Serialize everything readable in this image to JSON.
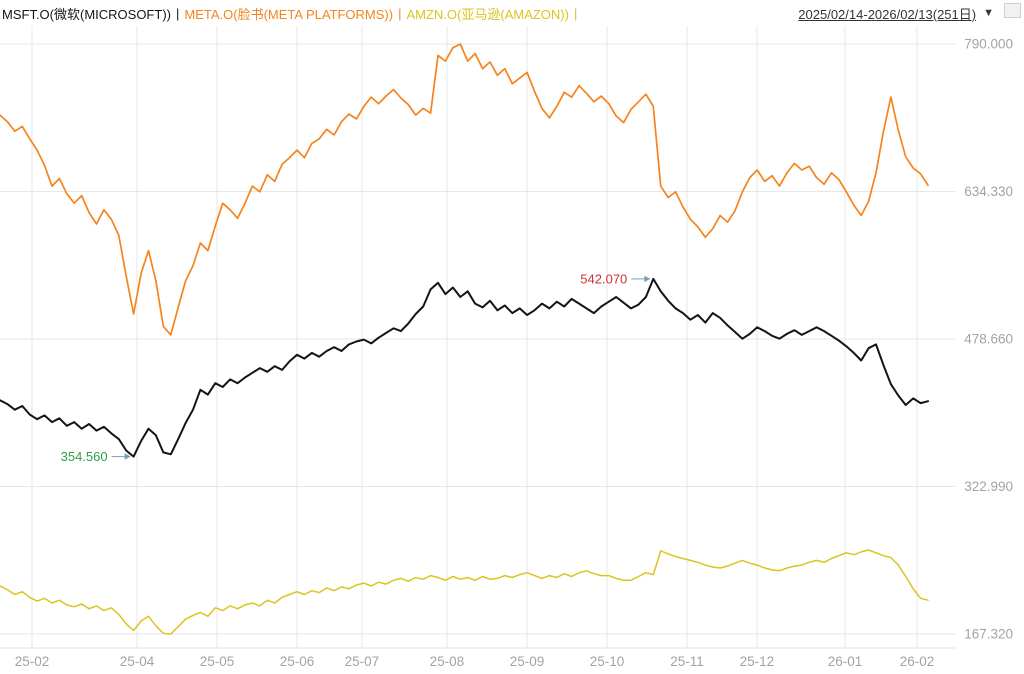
{
  "header": {
    "legend": [
      {
        "symbol_label": "MSFT.O(微软(MICROSOFT))",
        "color": "#141414"
      },
      {
        "symbol_label": "META.O(脸书(META PLATFORMS))",
        "color": "#f5841e"
      },
      {
        "symbol_label": "AMZN.O(亚马逊(AMAZON))",
        "color": "#dcc41e"
      }
    ],
    "separator": "|",
    "date_range": "2025/02/14-2026/02/13(251日)",
    "dropdown_icon": "▼"
  },
  "chart_data": {
    "type": "line",
    "title": "",
    "xlabel": "",
    "ylabel": "",
    "grid": true,
    "legend_position": "top-left",
    "ylim": [
      167.32,
      790.0
    ],
    "y_ticks": [
      {
        "label": "790.000",
        "value": 790.0
      },
      {
        "label": "634.330",
        "value": 634.33
      },
      {
        "label": "478.660",
        "value": 478.66
      },
      {
        "label": "322.990",
        "value": 322.99
      },
      {
        "label": "167.320",
        "value": 167.32
      }
    ],
    "x_ticks": [
      {
        "label": "25-02",
        "f": 0.0335
      },
      {
        "label": "25-04",
        "f": 0.1435
      },
      {
        "label": "25-05",
        "f": 0.2272
      },
      {
        "label": "25-06",
        "f": 0.311
      },
      {
        "label": "25-07",
        "f": 0.379
      },
      {
        "label": "25-08",
        "f": 0.468
      },
      {
        "label": "25-09",
        "f": 0.5518
      },
      {
        "label": "25-10",
        "f": 0.6356
      },
      {
        "label": "25-11",
        "f": 0.7194
      },
      {
        "label": "25-12",
        "f": 0.7926
      },
      {
        "label": "26-01",
        "f": 0.8848
      },
      {
        "label": "26-02",
        "f": 0.9602
      }
    ],
    "series": [
      {
        "name": "MSFT.O",
        "color": "#141414",
        "values": [
          414,
          410,
          404,
          408,
          399,
          394,
          398,
          391,
          395,
          387,
          391,
          384,
          389,
          382,
          386,
          379,
          373,
          361,
          354.56,
          371,
          384,
          377,
          359,
          357,
          373,
          390,
          404,
          425,
          420,
          432,
          428,
          436,
          432,
          438,
          443,
          448,
          444,
          450,
          446,
          455,
          462,
          458,
          464,
          460,
          466,
          470,
          466,
          473,
          476,
          478,
          474,
          480,
          485,
          490,
          487,
          495,
          505,
          513,
          531,
          538,
          526,
          533,
          523,
          529,
          516,
          512,
          519,
          509,
          514,
          506,
          511,
          504,
          509,
          516,
          511,
          518,
          513,
          521,
          516,
          511,
          506,
          513,
          518,
          523,
          517,
          511,
          515,
          523,
          542.07,
          529,
          519,
          511,
          506,
          499,
          504,
          496,
          506,
          501,
          493,
          486,
          479,
          484,
          491,
          487,
          482,
          479,
          484,
          488,
          483,
          487,
          491,
          487,
          482,
          477,
          471,
          464,
          456,
          469,
          473,
          451,
          431,
          419,
          409,
          416,
          411,
          413
        ]
      },
      {
        "name": "META.O",
        "color": "#f5841e",
        "values": [
          715,
          708,
          698,
          703,
          690,
          678,
          662,
          640,
          648,
          632,
          622,
          630,
          612,
          600,
          615,
          605,
          588,
          545,
          505,
          548,
          572,
          540,
          492,
          483,
          512,
          540,
          556,
          580,
          572,
          598,
          622,
          615,
          606,
          622,
          640,
          634,
          652,
          645,
          663,
          670,
          678,
          670,
          685,
          690,
          700,
          694,
          708,
          716,
          711,
          724,
          734,
          727,
          735,
          742,
          733,
          726,
          715,
          722,
          717,
          778,
          772,
          786,
          790,
          772,
          780,
          764,
          771,
          757,
          764,
          748,
          754,
          760,
          740,
          722,
          712,
          724,
          739,
          734,
          746,
          738,
          729,
          735,
          727,
          714,
          707,
          721,
          729,
          737,
          724,
          640,
          628,
          634,
          618,
          605,
          597,
          586,
          595,
          609,
          602,
          614,
          634,
          649,
          657,
          645,
          651,
          640,
          654,
          664,
          657,
          661,
          649,
          642,
          654,
          647,
          634,
          620,
          609,
          624,
          654,
          698,
          734,
          699,
          671,
          659,
          653,
          641
        ]
      },
      {
        "name": "AMZN.O",
        "color": "#dcc41e",
        "values": [
          218,
          214,
          209,
          212,
          206,
          202,
          205,
          200,
          203,
          198,
          196,
          199,
          194,
          197,
          192,
          195,
          188,
          178,
          171,
          181,
          186,
          176,
          168,
          167.32,
          175,
          183,
          187,
          190,
          186,
          195,
          192,
          197,
          194,
          198,
          200,
          197,
          203,
          200,
          206,
          209,
          212,
          209,
          213,
          211,
          216,
          213,
          217,
          215,
          219,
          221,
          218,
          222,
          220,
          224,
          226,
          223,
          227,
          225,
          229,
          227,
          224,
          228,
          225,
          227,
          224,
          228,
          225,
          226,
          229,
          227,
          230,
          232,
          229,
          226,
          229,
          227,
          231,
          228,
          232,
          234,
          231,
          229,
          229,
          226,
          224,
          224,
          228,
          232,
          230,
          255,
          252,
          249,
          247,
          245,
          243,
          240,
          238,
          237,
          239,
          242,
          245,
          242,
          240,
          237,
          235,
          234,
          237,
          239,
          240,
          243,
          245,
          243,
          247,
          250,
          253,
          251,
          254,
          256,
          253,
          250,
          248,
          240,
          228,
          215,
          205,
          203
        ]
      }
    ],
    "annotations": [
      {
        "text": "542.070",
        "value": 542.07,
        "color": "#d02f2f",
        "series": 0,
        "index": 88
      },
      {
        "text": "354.560",
        "value": 354.56,
        "color": "#2f9e44",
        "series": 0,
        "index": 18
      }
    ]
  }
}
